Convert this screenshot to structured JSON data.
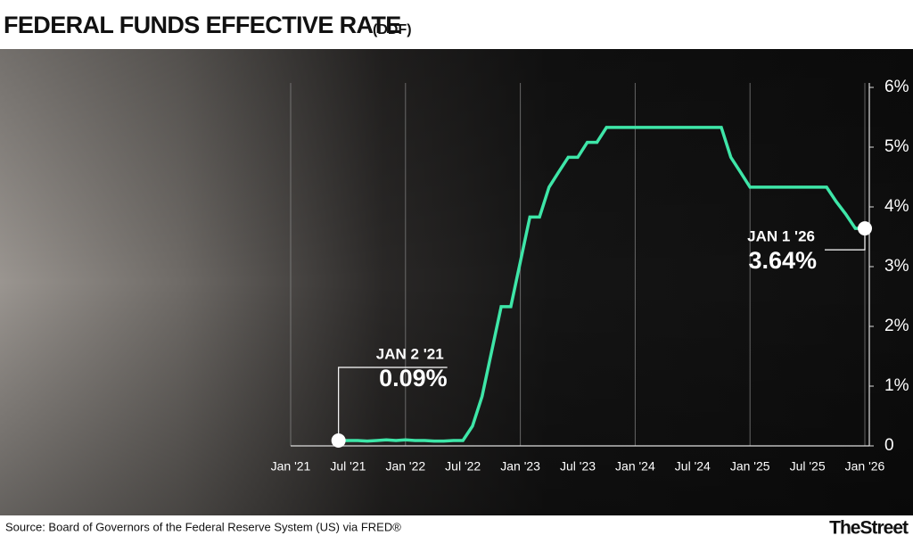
{
  "chart_data": {
    "type": "line",
    "title": "FEDERAL FUNDS EFFECTIVE RATE",
    "subtitle": "(DDF)",
    "source": "Source: Board of Governors of the Federal Reserve System (US) via FRED®",
    "brand": "TheStreet",
    "x": [
      "2021-06",
      "2021-07",
      "2021-08",
      "2021-09",
      "2021-10",
      "2021-11",
      "2021-12",
      "2022-01",
      "2022-02",
      "2022-03",
      "2022-04",
      "2022-05",
      "2022-06",
      "2022-07",
      "2022-08",
      "2022-09",
      "2022-10",
      "2022-11",
      "2022-12",
      "2023-01",
      "2023-02",
      "2023-03",
      "2023-04",
      "2023-05",
      "2023-06",
      "2023-07",
      "2023-08",
      "2023-09",
      "2023-10",
      "2023-11",
      "2023-12",
      "2024-01",
      "2024-02",
      "2024-03",
      "2024-04",
      "2024-05",
      "2024-06",
      "2024-07",
      "2024-08",
      "2024-09",
      "2024-10",
      "2024-11",
      "2024-12",
      "2025-01",
      "2025-02",
      "2025-03",
      "2025-04",
      "2025-05",
      "2025-06",
      "2025-07",
      "2025-08",
      "2025-09",
      "2025-10",
      "2025-11",
      "2025-12",
      "2026-01"
    ],
    "series": [
      {
        "name": "Federal Funds Effective Rate",
        "color": "#3ee6a8",
        "values": [
          0.09,
          0.09,
          0.09,
          0.08,
          0.09,
          0.1,
          0.09,
          0.1,
          0.09,
          0.09,
          0.08,
          0.08,
          0.09,
          0.09,
          0.33,
          0.83,
          1.58,
          2.33,
          2.33,
          3.08,
          3.83,
          3.83,
          4.33,
          4.58,
          4.83,
          4.83,
          5.08,
          5.08,
          5.33,
          5.33,
          5.33,
          5.33,
          5.33,
          5.33,
          5.33,
          5.33,
          5.33,
          5.33,
          5.33,
          5.33,
          5.33,
          4.83,
          4.58,
          4.33,
          4.33,
          4.33,
          4.33,
          4.33,
          4.33,
          4.33,
          4.33,
          4.33,
          4.09,
          3.88,
          3.64,
          3.64
        ]
      }
    ],
    "xlim": [
      "2021-01",
      "2026-01"
    ],
    "xticks": [
      {
        "value": "2021-01",
        "label": "Jan '21"
      },
      {
        "value": "2021-07",
        "label": "Jul '21"
      },
      {
        "value": "2022-01",
        "label": "Jan '22"
      },
      {
        "value": "2022-07",
        "label": "Jul '22"
      },
      {
        "value": "2023-01",
        "label": "Jan '23"
      },
      {
        "value": "2023-07",
        "label": "Jul '23"
      },
      {
        "value": "2024-01",
        "label": "Jan '24"
      },
      {
        "value": "2024-07",
        "label": "Jul '24"
      },
      {
        "value": "2025-01",
        "label": "Jan '25"
      },
      {
        "value": "2025-07",
        "label": "Jul '25"
      },
      {
        "value": "2026-01",
        "label": "Jan '26"
      }
    ],
    "xgrid": [
      "2021-01",
      "2022-01",
      "2023-01",
      "2024-01",
      "2025-01",
      "2026-01"
    ],
    "ylim": [
      0,
      6
    ],
    "yticks": [
      0,
      {
        "value": 1,
        "label": "1%"
      },
      {
        "value": 2,
        "label": "2%"
      },
      {
        "value": 3,
        "label": "3%"
      },
      {
        "value": 4,
        "label": "4%"
      },
      {
        "value": 5,
        "label": "5%"
      },
      {
        "value": 6,
        "label": "6%"
      }
    ],
    "annotations": [
      {
        "date_label": "JAN 2 '21",
        "x": "2021-06",
        "value": 0.09,
        "value_label": "0.09%"
      },
      {
        "date_label": "JAN 1 '26",
        "x": "2026-01",
        "value": 3.64,
        "value_label": "3.64%"
      }
    ]
  }
}
